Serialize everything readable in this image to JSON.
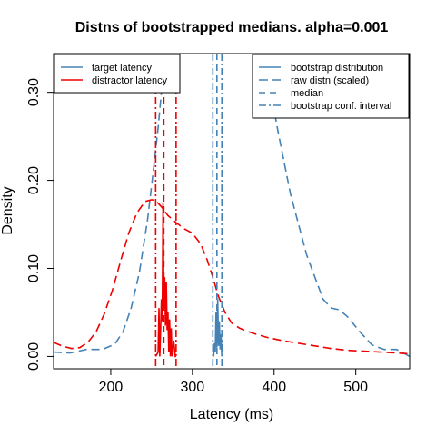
{
  "chart_data": {
    "type": "line",
    "title": "Distns of bootstrapped medians. alpha=0.001",
    "xlabel": "Latency (ms)",
    "ylabel": "Density",
    "xlim": [
      130,
      566
    ],
    "ylim": [
      -0.014,
      0.344
    ],
    "x_ticks": [
      200,
      300,
      400,
      500
    ],
    "y_ticks": [
      0.0,
      0.1,
      0.2,
      0.3
    ],
    "y_tick_labels": [
      "0.00",
      "0.10",
      "0.20",
      "0.30"
    ],
    "colors": {
      "target": "#4682b4",
      "distractor": "#ee0000"
    },
    "legend_left": [
      {
        "label": "target latency",
        "color": "#4682b4"
      },
      {
        "label": "distractor latency",
        "color": "#ee0000"
      }
    ],
    "legend_right": [
      {
        "label": "bootstrap distribution",
        "color": "#4682b4",
        "dash": ""
      },
      {
        "label": "raw distn (scaled)",
        "color": "#4682b4",
        "dash": "10,5"
      },
      {
        "label": "median",
        "color": "#4682b4",
        "dash": "7,5"
      },
      {
        "label": "bootstrap conf. interval",
        "color": "#4682b4",
        "dash": "8,3,2,3"
      }
    ],
    "series": [
      {
        "name": "target latency",
        "role": "raw distn (scaled)",
        "color": "#4682b4",
        "dash": "9,5",
        "x": [
          130,
          150,
          170,
          190,
          205,
          215,
          225,
          235,
          245,
          252,
          258,
          262,
          265,
          268
        ],
        "y": [
          0.005,
          0.004,
          0.008,
          0.008,
          0.014,
          0.028,
          0.055,
          0.095,
          0.155,
          0.21,
          0.26,
          0.3,
          0.33,
          0.35
        ]
      },
      {
        "name": "target latency",
        "role": "raw distn (scaled)",
        "color": "#4682b4",
        "dash": "9,5",
        "x": [
          398,
          405,
          420,
          440,
          460,
          470,
          480,
          490,
          505,
          520,
          535,
          550,
          566
        ],
        "y": [
          0.29,
          0.255,
          0.185,
          0.115,
          0.065,
          0.055,
          0.053,
          0.045,
          0.028,
          0.013,
          0.008,
          0.008,
          0.0
        ]
      },
      {
        "name": "distractor latency",
        "role": "raw distn (scaled)",
        "color": "#ee0000",
        "dash": "9,5",
        "x": [
          130,
          140,
          152,
          162,
          172,
          182,
          192,
          202,
          212,
          222,
          232,
          242,
          250,
          255,
          262,
          270,
          280,
          290,
          300,
          310,
          318,
          325,
          332,
          340,
          348,
          358,
          372,
          390,
          410,
          430,
          450,
          470,
          490,
          510,
          530,
          550,
          566
        ],
        "y": [
          0.016,
          0.012,
          0.009,
          0.01,
          0.016,
          0.028,
          0.048,
          0.075,
          0.108,
          0.14,
          0.163,
          0.176,
          0.178,
          0.177,
          0.17,
          0.16,
          0.152,
          0.145,
          0.14,
          0.128,
          0.11,
          0.09,
          0.068,
          0.05,
          0.038,
          0.032,
          0.027,
          0.022,
          0.018,
          0.015,
          0.012,
          0.009,
          0.007,
          0.006,
          0.005,
          0.004,
          0.003
        ]
      },
      {
        "name": "distractor latency",
        "role": "bootstrap distribution",
        "color": "#ee0000",
        "dash": "",
        "x": [
          255,
          258,
          259,
          260,
          261,
          262,
          263,
          264,
          265,
          266,
          267,
          268,
          269,
          270,
          271,
          272,
          273,
          274,
          275,
          277,
          279,
          280
        ],
        "y": [
          0.0,
          0.005,
          0.055,
          0.0,
          0.03,
          0.065,
          0.04,
          0.175,
          0.055,
          0.09,
          0.035,
          0.085,
          0.03,
          0.05,
          0.005,
          0.042,
          0.0,
          0.032,
          0.0,
          0.018,
          0.0,
          0.0
        ]
      },
      {
        "name": "target latency",
        "role": "bootstrap distribution",
        "color": "#4682b4",
        "dash": "",
        "x": [
          326,
          327,
          328,
          329,
          330,
          331,
          332,
          333,
          334,
          335,
          336
        ],
        "y": [
          0.0,
          0.015,
          0.005,
          0.05,
          0.01,
          0.065,
          0.012,
          0.04,
          0.008,
          0.025,
          0.0
        ]
      }
    ],
    "vlines": [
      {
        "series": "distractor latency",
        "role": "bootstrap conf. interval",
        "x": 255,
        "color": "#ee0000",
        "dash": "8,3,2,3"
      },
      {
        "series": "distractor latency",
        "role": "median",
        "x": 265,
        "color": "#ee0000",
        "dash": "7,5"
      },
      {
        "series": "distractor latency",
        "role": "bootstrap conf. interval",
        "x": 280,
        "color": "#ee0000",
        "dash": "8,3,2,3"
      },
      {
        "series": "target latency",
        "role": "bootstrap conf. interval",
        "x": 325,
        "color": "#4682b4",
        "dash": "8,3,2,3"
      },
      {
        "series": "target latency",
        "role": "median",
        "x": 330,
        "color": "#4682b4",
        "dash": "7,5"
      },
      {
        "series": "target latency",
        "role": "bootstrap conf. interval",
        "x": 336,
        "color": "#4682b4",
        "dash": "8,3,2,3"
      }
    ]
  }
}
